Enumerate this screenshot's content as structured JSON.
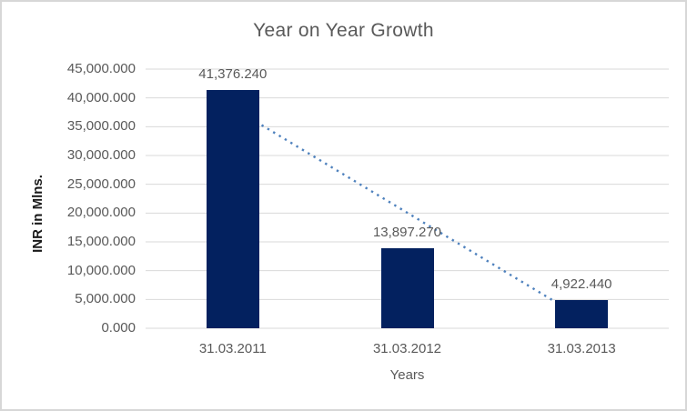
{
  "chart_data": {
    "type": "bar",
    "title": "Year on Year Growth",
    "xlabel": "Years",
    "ylabel": "INR in Mlns.",
    "categories": [
      "31.03.2011",
      "31.03.2012",
      "31.03.2013"
    ],
    "values": [
      41376.24,
      13897.27,
      4922.44
    ],
    "value_labels": [
      "41,376.240",
      "13,897.270",
      "4,922.440"
    ],
    "ylim": [
      0,
      45000
    ],
    "y_tick_step": 5000,
    "y_tick_labels": [
      "45,000.000",
      "40,000.000",
      "35,000.000",
      "30,000.000",
      "25,000.000",
      "20,000.000",
      "15,000.000",
      "10,000.000",
      "5,000.000",
      "0.000"
    ],
    "grid": true,
    "legend": "none",
    "trendline": {
      "type": "linear",
      "style": "dotted"
    },
    "colors": {
      "bar": "#03215f",
      "trendline": "#4e81bd",
      "gridline": "#d9d9d9",
      "axis_line": "#d9d9d9",
      "text": "#595959",
      "axis_title_text": "#1a1a1a",
      "frame_border": "#d7d7d7",
      "background": "#ffffff"
    }
  }
}
